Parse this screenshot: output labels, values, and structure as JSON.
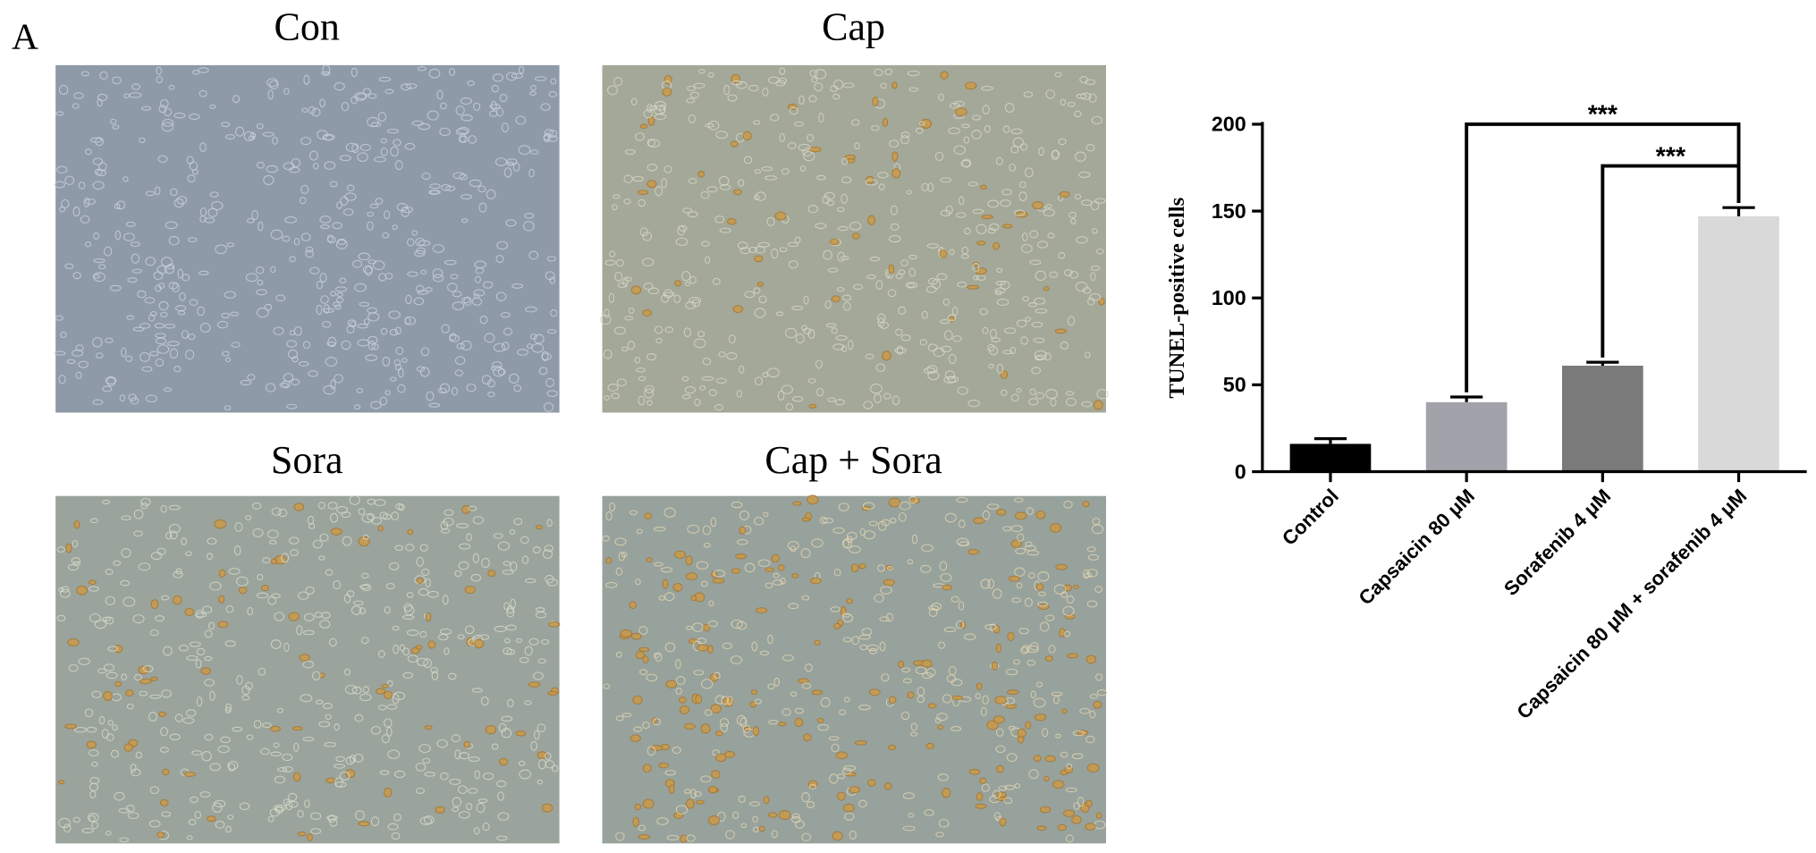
{
  "panel_label": "A",
  "images": [
    {
      "title": "Con"
    },
    {
      "title": "Cap"
    },
    {
      "title": "Sora"
    },
    {
      "title": "Cap + Sora"
    }
  ],
  "chart_data": {
    "type": "bar",
    "ylabel": "TUNEL-positive cells",
    "categories": [
      "Control",
      "Capsaicin 80 μM",
      "Sorafenib 4 μM",
      "Capsaicin 80 μM + sorafenib 4 μM"
    ],
    "values": [
      16,
      40,
      61,
      147
    ],
    "errors": [
      3,
      3,
      2,
      5
    ],
    "colors": [
      "#000000",
      "#a2a2aa",
      "#7a7a7a",
      "#d9d9d9"
    ],
    "ylim": [
      0,
      200
    ],
    "yticks": [
      0,
      50,
      100,
      150,
      200
    ],
    "comparisons": [
      {
        "label": "***",
        "groups": [
          1,
          3
        ]
      },
      {
        "label": "***",
        "groups": [
          2,
          3
        ]
      }
    ]
  }
}
